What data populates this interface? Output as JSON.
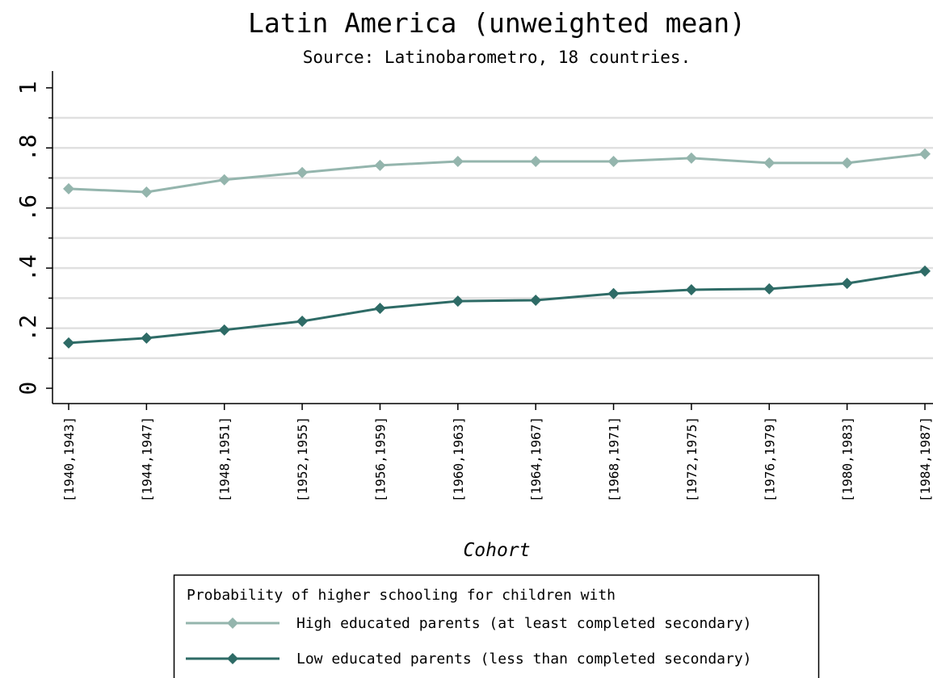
{
  "chart_data": {
    "type": "line",
    "title": "Latin America (unweighted mean)",
    "subtitle": "Source: Latinobarometro, 18 countries.",
    "x_label": "Cohort",
    "legend_title": "Probability of higher schooling for children with",
    "categories": [
      "[1940,1943]",
      "[1944,1947]",
      "[1948,1951]",
      "[1952,1955]",
      "[1956,1959]",
      "[1960,1963]",
      "[1964,1967]",
      "[1968,1971]",
      "[1972,1975]",
      "[1976,1979]",
      "[1980,1983]",
      "[1984,1987]"
    ],
    "series": [
      {
        "name": "High educated parents (at least completed secondary)",
        "color": "#94b5ad",
        "values": [
          0.664,
          0.653,
          0.694,
          0.718,
          0.742,
          0.755,
          0.755,
          0.755,
          0.766,
          0.75,
          0.75,
          0.78
        ]
      },
      {
        "name": "Low educated parents (less than completed secondary)",
        "color": "#2e6b66",
        "values": [
          0.151,
          0.167,
          0.194,
          0.223,
          0.266,
          0.29,
          0.293,
          0.315,
          0.328,
          0.331,
          0.349,
          0.39
        ]
      }
    ],
    "ylim": [
      -0.051,
      1.056
    ],
    "yticks": [
      0,
      {
        "value": 0.2,
        "label": ".2"
      },
      {
        "value": 0.4,
        "label": ".4"
      },
      {
        "value": 0.6,
        "label": ".6"
      },
      {
        "value": 0.8,
        "label": ".8"
      },
      1
    ],
    "yminorticks": [
      0.1,
      0.3,
      0.5,
      0.7,
      0.9
    ],
    "ygrid": [
      0.1,
      0.2,
      0.3,
      0.4,
      0.5,
      0.6,
      0.7,
      0.8,
      0.9
    ]
  }
}
